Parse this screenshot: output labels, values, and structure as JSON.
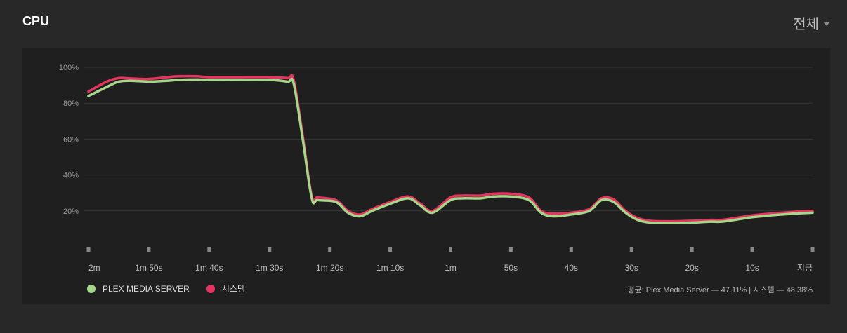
{
  "header": {
    "title": "CPU",
    "range_label": "전체"
  },
  "colors": {
    "plex": "#a5d68a",
    "system": "#e5345f",
    "grid": "#363636",
    "text": "#9a9a9a"
  },
  "summary": {
    "text": "평균: Plex Media Server — 47.11% | 시스템 — 48.38%"
  },
  "chart_data": {
    "type": "line",
    "y_ticks": [
      "100%",
      "80%",
      "60%",
      "40%",
      "20%"
    ],
    "y_tick_values": [
      100,
      80,
      60,
      40,
      20
    ],
    "ylim": [
      0,
      100
    ],
    "x": [
      "2m",
      "1m 50s",
      "1m 40s",
      "1m 30s",
      "1m 20s",
      "1m 10s",
      "1m",
      "50s",
      "40s",
      "30s",
      "20s",
      "10s",
      "지금"
    ],
    "series": [
      {
        "name": "PLEX MEDIA SERVER",
        "color": "#a5d68a",
        "values": [
          [
            120,
            84
          ],
          [
            117,
            89
          ],
          [
            115,
            92
          ],
          [
            113,
            92.5
          ],
          [
            110,
            92
          ],
          [
            107,
            92.5
          ],
          [
            105,
            93
          ],
          [
            102,
            93.2
          ],
          [
            100,
            93
          ],
          [
            95,
            93
          ],
          [
            90,
            93
          ],
          [
            87,
            92
          ],
          [
            86,
            91
          ],
          [
            84.5,
            60
          ],
          [
            83,
            27
          ],
          [
            82,
            26
          ],
          [
            79,
            25
          ],
          [
            77,
            19
          ],
          [
            75,
            17
          ],
          [
            73,
            20
          ],
          [
            70,
            24
          ],
          [
            67,
            27
          ],
          [
            65,
            23
          ],
          [
            63,
            19
          ],
          [
            60,
            26
          ],
          [
            58,
            27
          ],
          [
            55,
            27
          ],
          [
            53,
            28
          ],
          [
            50,
            28
          ],
          [
            47,
            26
          ],
          [
            45,
            19
          ],
          [
            43,
            17
          ],
          [
            40,
            18
          ],
          [
            37,
            20
          ],
          [
            35,
            26
          ],
          [
            33,
            25
          ],
          [
            31,
            19
          ],
          [
            29,
            15
          ],
          [
            27,
            13.5
          ],
          [
            24,
            13.2
          ],
          [
            20,
            13.5
          ],
          [
            17,
            14
          ],
          [
            15,
            14
          ],
          [
            12,
            15.5
          ],
          [
            10,
            16.5
          ],
          [
            7,
            17.5
          ],
          [
            5,
            18
          ],
          [
            3,
            18.5
          ],
          [
            0,
            19
          ]
        ]
      },
      {
        "name": "시스템",
        "color": "#e5345f",
        "values": [
          [
            120,
            86.5
          ],
          [
            117,
            92
          ],
          [
            115,
            94
          ],
          [
            113,
            93.8
          ],
          [
            110,
            93.5
          ],
          [
            107,
            94.5
          ],
          [
            105,
            95
          ],
          [
            102,
            95
          ],
          [
            100,
            94.5
          ],
          [
            95,
            94.5
          ],
          [
            90,
            94.5
          ],
          [
            87,
            94
          ],
          [
            86,
            93
          ],
          [
            84.5,
            62
          ],
          [
            83,
            28
          ],
          [
            82,
            27.5
          ],
          [
            79,
            26
          ],
          [
            77,
            20
          ],
          [
            75,
            18
          ],
          [
            73,
            21
          ],
          [
            70,
            25
          ],
          [
            67,
            28
          ],
          [
            65,
            24
          ],
          [
            63,
            20
          ],
          [
            60,
            27.5
          ],
          [
            58,
            28.5
          ],
          [
            55,
            28.5
          ],
          [
            53,
            29.5
          ],
          [
            50,
            29.5
          ],
          [
            47,
            27.5
          ],
          [
            45,
            20
          ],
          [
            43,
            18.5
          ],
          [
            40,
            19
          ],
          [
            37,
            21
          ],
          [
            35,
            27
          ],
          [
            33,
            26.5
          ],
          [
            31,
            20
          ],
          [
            29,
            16
          ],
          [
            27,
            14.5
          ],
          [
            24,
            14.2
          ],
          [
            20,
            14.5
          ],
          [
            17,
            15
          ],
          [
            15,
            15
          ],
          [
            12,
            16.5
          ],
          [
            10,
            17.5
          ],
          [
            7,
            18.5
          ],
          [
            5,
            19
          ],
          [
            3,
            19.5
          ],
          [
            0,
            20
          ]
        ]
      }
    ],
    "grid": true,
    "legend": "bottom-left"
  }
}
